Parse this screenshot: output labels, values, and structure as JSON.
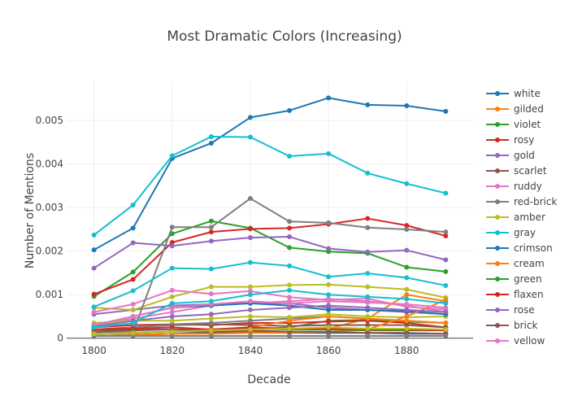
{
  "chart_data": {
    "type": "line",
    "title": "Most Dramatic Colors (Increasing)",
    "xlabel": "Decade",
    "ylabel": "Number of Mentions",
    "x": [
      1800,
      1810,
      1820,
      1830,
      1840,
      1850,
      1860,
      1870,
      1880,
      1890
    ],
    "xlim": [
      1793,
      1897
    ],
    "ylim": [
      -8e-05,
      0.0059
    ],
    "xticks": [
      1800,
      1820,
      1840,
      1860,
      1880
    ],
    "xtick_labels": [
      "1800",
      "1820",
      "1840",
      "1860",
      "1880"
    ],
    "yticks": [
      0,
      0.001,
      0.002,
      0.003,
      0.004,
      0.005
    ],
    "ytick_labels": [
      "0",
      "0.001",
      "0.002",
      "0.003",
      "0.004",
      "0.005"
    ],
    "grid": true,
    "legend": "right",
    "series": [
      {
        "name": "white",
        "color": "#1f77b4",
        "values": [
          0.00203,
          0.00253,
          0.00413,
          0.00448,
          0.00507,
          0.00523,
          0.00552,
          0.00536,
          0.00534,
          0.00521
        ]
      },
      {
        "name": "gilded",
        "color": "#ff7f0e",
        "values": [
          0.0001,
          0.00012,
          0.00015,
          0.00018,
          0.00022,
          0.0002,
          0.00022,
          0.00045,
          0.001,
          0.00085
        ]
      },
      {
        "name": "violet",
        "color": "#2ca02c",
        "values": [
          0.0001,
          0.00012,
          0.00015,
          0.00018,
          0.0002,
          0.00025,
          0.0004,
          0.00042,
          0.00038,
          0.00035
        ]
      },
      {
        "name": "rosy",
        "color": "#d62728",
        "values": [
          0.00025,
          0.0003,
          0.00032,
          0.0003,
          0.00035,
          0.00035,
          0.00038,
          0.0004,
          0.00035,
          0.00025
        ]
      },
      {
        "name": "gold",
        "color": "#9467bd",
        "values": [
          0.00055,
          0.00065,
          0.00075,
          0.00078,
          0.0008,
          0.0008,
          0.0007,
          0.00065,
          0.0006,
          0.00055
        ]
      },
      {
        "name": "scarlet",
        "color": "#8c564b",
        "values": [
          0.0002,
          0.00025,
          0.0003,
          0.00032,
          0.0003,
          0.00028,
          0.0003,
          0.0003,
          0.0003,
          0.00025
        ]
      },
      {
        "name": "ruddy",
        "color": "#e377c2",
        "values": [
          0.0003,
          0.00045,
          0.0006,
          0.00075,
          0.0008,
          0.00085,
          0.0009,
          0.00085,
          0.00075,
          0.0006
        ]
      },
      {
        "name": "red-brick",
        "color": "#7f7f7f",
        "values": [
          0.00015,
          0.00025,
          0.00032,
          0.00035,
          0.0004,
          0.00045,
          0.0005,
          0.00045,
          0.0004,
          0.00035
        ]
      },
      {
        "name": "amber",
        "color": "#bcbd22",
        "values": [
          0.0007,
          0.00065,
          0.00095,
          0.00118,
          0.00118,
          0.00122,
          0.00123,
          0.00118,
          0.00112,
          0.00093
        ]
      },
      {
        "name": "gray",
        "color": "#17becf",
        "values": [
          0.00237,
          0.00306,
          0.00419,
          0.00463,
          0.00462,
          0.00418,
          0.00424,
          0.00379,
          0.00355,
          0.00333
        ]
      },
      {
        "name": "crimson",
        "color": "#1f77b4",
        "values": [
          5e-05,
          8e-05,
          0.0001,
          0.00012,
          0.00015,
          0.00012,
          0.00012,
          0.00012,
          0.0001,
          0.0001
        ]
      },
      {
        "name": "cream",
        "color": "#ff7f0e",
        "values": [
          0.0001,
          0.00013,
          0.00015,
          0.0002,
          0.00025,
          0.0004,
          0.0005,
          0.00045,
          0.0004,
          0.00035
        ]
      },
      {
        "name": "green",
        "color": "#2ca02c",
        "values": [
          0.00096,
          0.00152,
          0.0024,
          0.00269,
          0.00253,
          0.00208,
          0.00199,
          0.00195,
          0.00163,
          0.00153
        ]
      },
      {
        "name": "flaxen",
        "color": "#d62728",
        "values": [
          0.00101,
          0.00135,
          0.0022,
          0.00244,
          0.00251,
          0.00253,
          0.00262,
          0.00275,
          0.00259,
          0.00235
        ]
      },
      {
        "name": "rose",
        "color": "#9467bd",
        "values": [
          0.00161,
          0.00219,
          0.00212,
          0.00223,
          0.00231,
          0.00233,
          0.00206,
          0.00198,
          0.00202,
          0.0018
        ]
      },
      {
        "name": "brick",
        "color": "#8c564b",
        "values": [
          0.0001,
          0.00012,
          0.00015,
          0.00015,
          0.00015,
          0.00015,
          0.00015,
          0.00012,
          0.00012,
          0.0001
        ]
      },
      {
        "name": "yellow",
        "color": "#e377c2",
        "values": [
          0.0006,
          0.00078,
          0.0011,
          0.00102,
          0.00108,
          0.00094,
          0.00088,
          0.00091,
          0.00072,
          0.00066
        ]
      },
      {
        "name": "",
        "color": "#7f7f7f",
        "values": [
          0.00012,
          0.00014,
          0.00255,
          0.00255,
          0.00321,
          0.00268,
          0.00265,
          0.00254,
          0.0025,
          0.00244
        ]
      },
      {
        "name": "",
        "color": "#bcbd22",
        "values": [
          0.00035,
          0.0004,
          0.0004,
          0.00045,
          0.0005,
          0.00048,
          0.00055,
          0.0005,
          0.00048,
          0.0005
        ]
      },
      {
        "name": "",
        "color": "#17becf",
        "values": [
          0.00072,
          0.00109,
          0.00161,
          0.00159,
          0.00174,
          0.00166,
          0.00141,
          0.00149,
          0.00139,
          0.00121
        ]
      },
      {
        "name": "",
        "color": "#1f77b4",
        "values": [
          0.0003,
          0.0005,
          0.0007,
          0.00075,
          0.0008,
          0.00075,
          0.00065,
          0.00065,
          0.00062,
          0.00055
        ]
      },
      {
        "name": "",
        "color": "#ff7f0e",
        "values": [
          5e-05,
          7e-05,
          0.0001,
          0.0001,
          0.00012,
          0.00012,
          0.00015,
          0.0002,
          0.0005,
          0.00088
        ]
      },
      {
        "name": "",
        "color": "#2ca02c",
        "values": [
          0.00015,
          0.0002,
          0.0002,
          0.0002,
          0.00022,
          0.0002,
          0.0002,
          0.00018,
          0.00018,
          0.00018
        ]
      },
      {
        "name": "",
        "color": "#d62728",
        "values": [
          0.0002,
          0.00022,
          0.00025,
          0.0002,
          0.00025,
          0.00022,
          0.00022,
          0.0002,
          0.0002,
          0.00018
        ]
      },
      {
        "name": "",
        "color": "#9467bd",
        "values": [
          0.00027,
          0.0004,
          0.0005,
          0.00055,
          0.00065,
          0.0007,
          0.00075,
          0.0007,
          0.00065,
          0.0006
        ]
      },
      {
        "name": "",
        "color": "#8c564b",
        "values": [
          0.00015,
          0.00018,
          0.0002,
          0.00018,
          0.00018,
          0.00015,
          0.00015,
          0.00012,
          0.00012,
          0.0001
        ]
      },
      {
        "name": "",
        "color": "#e377c2",
        "values": [
          0.0003,
          0.0005,
          0.0007,
          0.00078,
          0.00085,
          0.0008,
          0.00085,
          0.00082,
          0.00078,
          0.0007
        ]
      },
      {
        "name": "",
        "color": "#7f7f7f",
        "values": [
          5e-05,
          5e-05,
          5e-05,
          5e-05,
          5e-05,
          5e-05,
          5e-05,
          5e-05,
          5e-05,
          5e-05
        ]
      },
      {
        "name": "",
        "color": "#bcbd22",
        "values": [
          0.0001,
          0.00012,
          0.00015,
          0.00018,
          0.0002,
          0.00022,
          0.00025,
          0.00022,
          0.00022,
          0.0002
        ]
      },
      {
        "name": "",
        "color": "#17becf",
        "values": [
          0.00025,
          0.00035,
          0.0008,
          0.00085,
          0.001,
          0.0011,
          0.001,
          0.00095,
          0.0009,
          0.0008
        ]
      }
    ]
  }
}
